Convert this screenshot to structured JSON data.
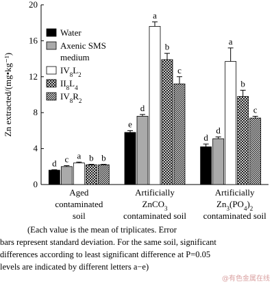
{
  "chart_data": {
    "type": "bar",
    "ylabel": "Zn extracted/(mg•kg⁻¹)",
    "categories": [
      "Aged\ncontaminated\nsoil",
      "Artificially\nZnCO3\ncontaminated soil",
      "Artificially\nZn3(PO4)2\ncontaminated soil"
    ],
    "ylim": [
      0,
      20
    ],
    "yticks": [
      0,
      4,
      8,
      12,
      16,
      20
    ],
    "series": [
      {
        "name": "Water",
        "color": "#000000",
        "pattern": "solid",
        "values": [
          1.6,
          5.8,
          4.2
        ],
        "errors": [
          0.05,
          0.2,
          0.3
        ],
        "letters": [
          "d",
          "e",
          "d"
        ]
      },
      {
        "name": "Axenic SMS\nmedium",
        "color": "#aaaaaa",
        "pattern": "solid",
        "values": [
          2.0,
          7.6,
          5.1
        ],
        "errors": [
          0.1,
          0.2,
          0.2
        ],
        "letters": [
          "c",
          "d",
          "d"
        ]
      },
      {
        "name": "IV8L2",
        "color": "#ffffff",
        "pattern": "solid",
        "values": [
          2.4,
          17.6,
          13.7
        ],
        "errors": [
          0.1,
          0.5,
          1.5
        ],
        "letters": [
          "a",
          "a",
          "a"
        ]
      },
      {
        "name": "II8L4",
        "color": "#000000",
        "pattern": "crosshatch",
        "values": [
          2.2,
          13.9,
          9.8
        ],
        "errors": [
          0.05,
          0.7,
          0.7
        ],
        "letters": [
          "b",
          "b",
          "b"
        ]
      },
      {
        "name": "IV8R2",
        "color": "#000000",
        "pattern": "hatch",
        "values": [
          2.2,
          11.2,
          7.4
        ],
        "errors": [
          0.05,
          0.8,
          0.2
        ],
        "letters": [
          "b",
          "c",
          "c"
        ]
      }
    ]
  },
  "note": [
    "(Each value is the mean of triplicates. Error",
    "bars represent standard deviation. For the same soil, significant",
    "differences according to least significant difference at P=0.05",
    "levels are indicated by different letters a−e)"
  ],
  "watermark": "@有色金属在线"
}
